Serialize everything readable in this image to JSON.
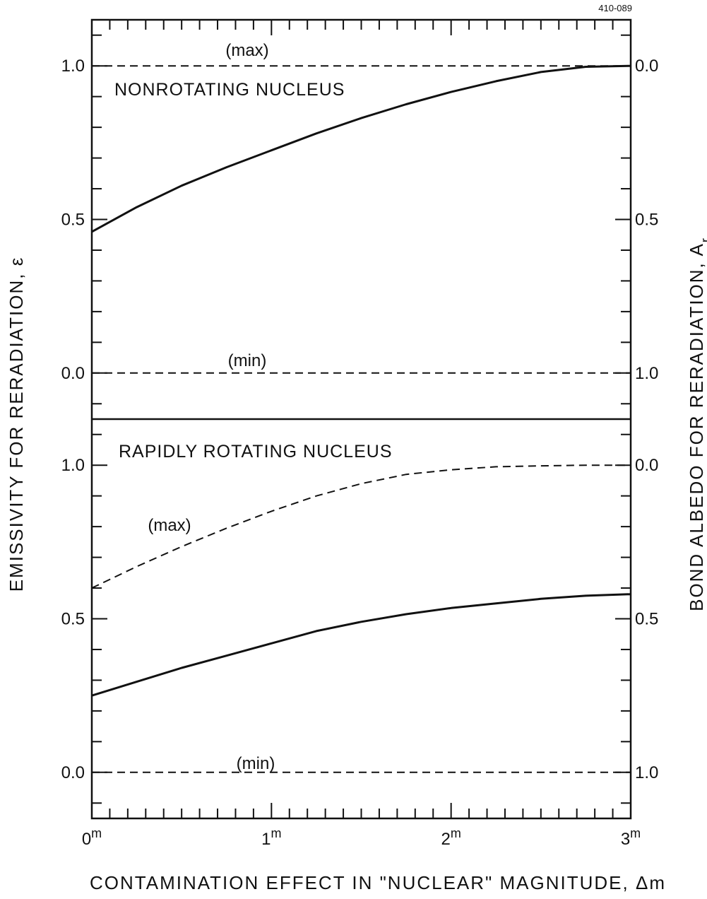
{
  "figure_id": "410-089",
  "chart_data": {
    "type": "line",
    "xlabel": "CONTAMINATION  EFFECT  IN \"NUCLEAR\"  MAGNITUDE, Δm",
    "ylabel_left": "EMISSIVITY  FOR  RERADIATION, ε",
    "ylabel_right": "BOND  ALBEDO  FOR  RERADIATION, A",
    "ylabel_right_subscript": "r",
    "xlim": [
      0,
      3
    ],
    "x_ticks": [
      {
        "value": 0,
        "label": "0",
        "sup": "m"
      },
      {
        "value": 1,
        "label": "1",
        "sup": "m"
      },
      {
        "value": 2,
        "label": "2",
        "sup": "m"
      },
      {
        "value": 3,
        "label": "3",
        "sup": "m"
      }
    ],
    "panels": [
      {
        "title": "NONROTATING  NUCLEUS",
        "ylim": [
          -0.15,
          1.15
        ],
        "left_ticks": [
          "0.0",
          "0.5",
          "1.0"
        ],
        "right_ticks": [
          "1.0",
          "0.5",
          "0.0"
        ],
        "series": [
          {
            "label": "(max)",
            "style": "dashed",
            "x": [
              0,
              3
            ],
            "y": [
              1.0,
              1.0
            ]
          },
          {
            "label": "",
            "style": "solid",
            "x": [
              0,
              0.25,
              0.5,
              0.75,
              1.0,
              1.25,
              1.5,
              1.75,
              2.0,
              2.25,
              2.5,
              2.75,
              3.0
            ],
            "y": [
              0.46,
              0.54,
              0.61,
              0.67,
              0.725,
              0.78,
              0.83,
              0.875,
              0.915,
              0.95,
              0.98,
              0.997,
              1.0
            ]
          },
          {
            "label": "(min)",
            "style": "dashed",
            "x": [
              0,
              3
            ],
            "y": [
              0.0,
              0.0
            ]
          }
        ]
      },
      {
        "title": "RAPIDLY  ROTATING  NUCLEUS",
        "ylim": [
          -0.15,
          1.15
        ],
        "left_ticks": [
          "0.0",
          "0.5",
          "1.0"
        ],
        "right_ticks": [
          "1.0",
          "0.5",
          "0.0"
        ],
        "series": [
          {
            "label": "(max)",
            "style": "dashed",
            "x": [
              0,
              0.25,
              0.5,
              0.75,
              1.0,
              1.25,
              1.5,
              1.75,
              2.0,
              2.25,
              2.5,
              2.75,
              3.0
            ],
            "y": [
              0.6,
              0.67,
              0.735,
              0.795,
              0.85,
              0.9,
              0.94,
              0.97,
              0.985,
              0.995,
              0.998,
              1.0,
              1.0
            ]
          },
          {
            "label": "",
            "style": "solid",
            "x": [
              0,
              0.25,
              0.5,
              0.75,
              1.0,
              1.25,
              1.5,
              1.75,
              2.0,
              2.25,
              2.5,
              2.75,
              3.0
            ],
            "y": [
              0.25,
              0.295,
              0.34,
              0.38,
              0.42,
              0.46,
              0.49,
              0.515,
              0.535,
              0.55,
              0.565,
              0.575,
              0.58
            ]
          },
          {
            "label": "(min)",
            "style": "dashed",
            "x": [
              0,
              3
            ],
            "y": [
              0.0,
              0.0
            ]
          }
        ]
      }
    ]
  }
}
